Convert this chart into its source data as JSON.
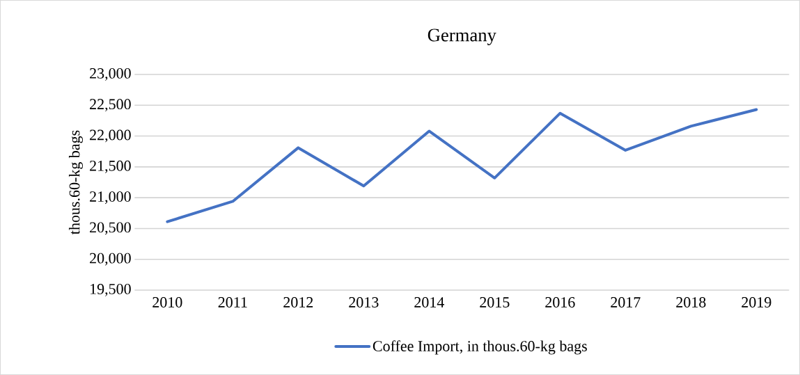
{
  "chart_data": {
    "type": "line",
    "title": "Germany",
    "ylabel": "thous.60-kg bags",
    "categories": [
      "2010",
      "2011",
      "2012",
      "2013",
      "2014",
      "2015",
      "2016",
      "2017",
      "2018",
      "2019"
    ],
    "series": [
      {
        "name": "Coffee Import, in thous.60-kg bags",
        "color": "#4472c4",
        "values": [
          20610,
          20940,
          21810,
          21190,
          22080,
          21320,
          22370,
          21770,
          22160,
          22430
        ]
      }
    ],
    "ylim": [
      19500,
      23000
    ],
    "yticks": [
      {
        "value": 19500,
        "label": "19,500"
      },
      {
        "value": 20000,
        "label": "20,000"
      },
      {
        "value": 20500,
        "label": "20,500"
      },
      {
        "value": 21000,
        "label": "21,000"
      },
      {
        "value": 21500,
        "label": "21,500"
      },
      {
        "value": 22000,
        "label": "22,000"
      },
      {
        "value": 22500,
        "label": "22,500"
      },
      {
        "value": 23000,
        "label": "23,000"
      }
    ],
    "grid": "y",
    "legend": "bottom",
    "marker": "none",
    "line_style": "solid"
  }
}
